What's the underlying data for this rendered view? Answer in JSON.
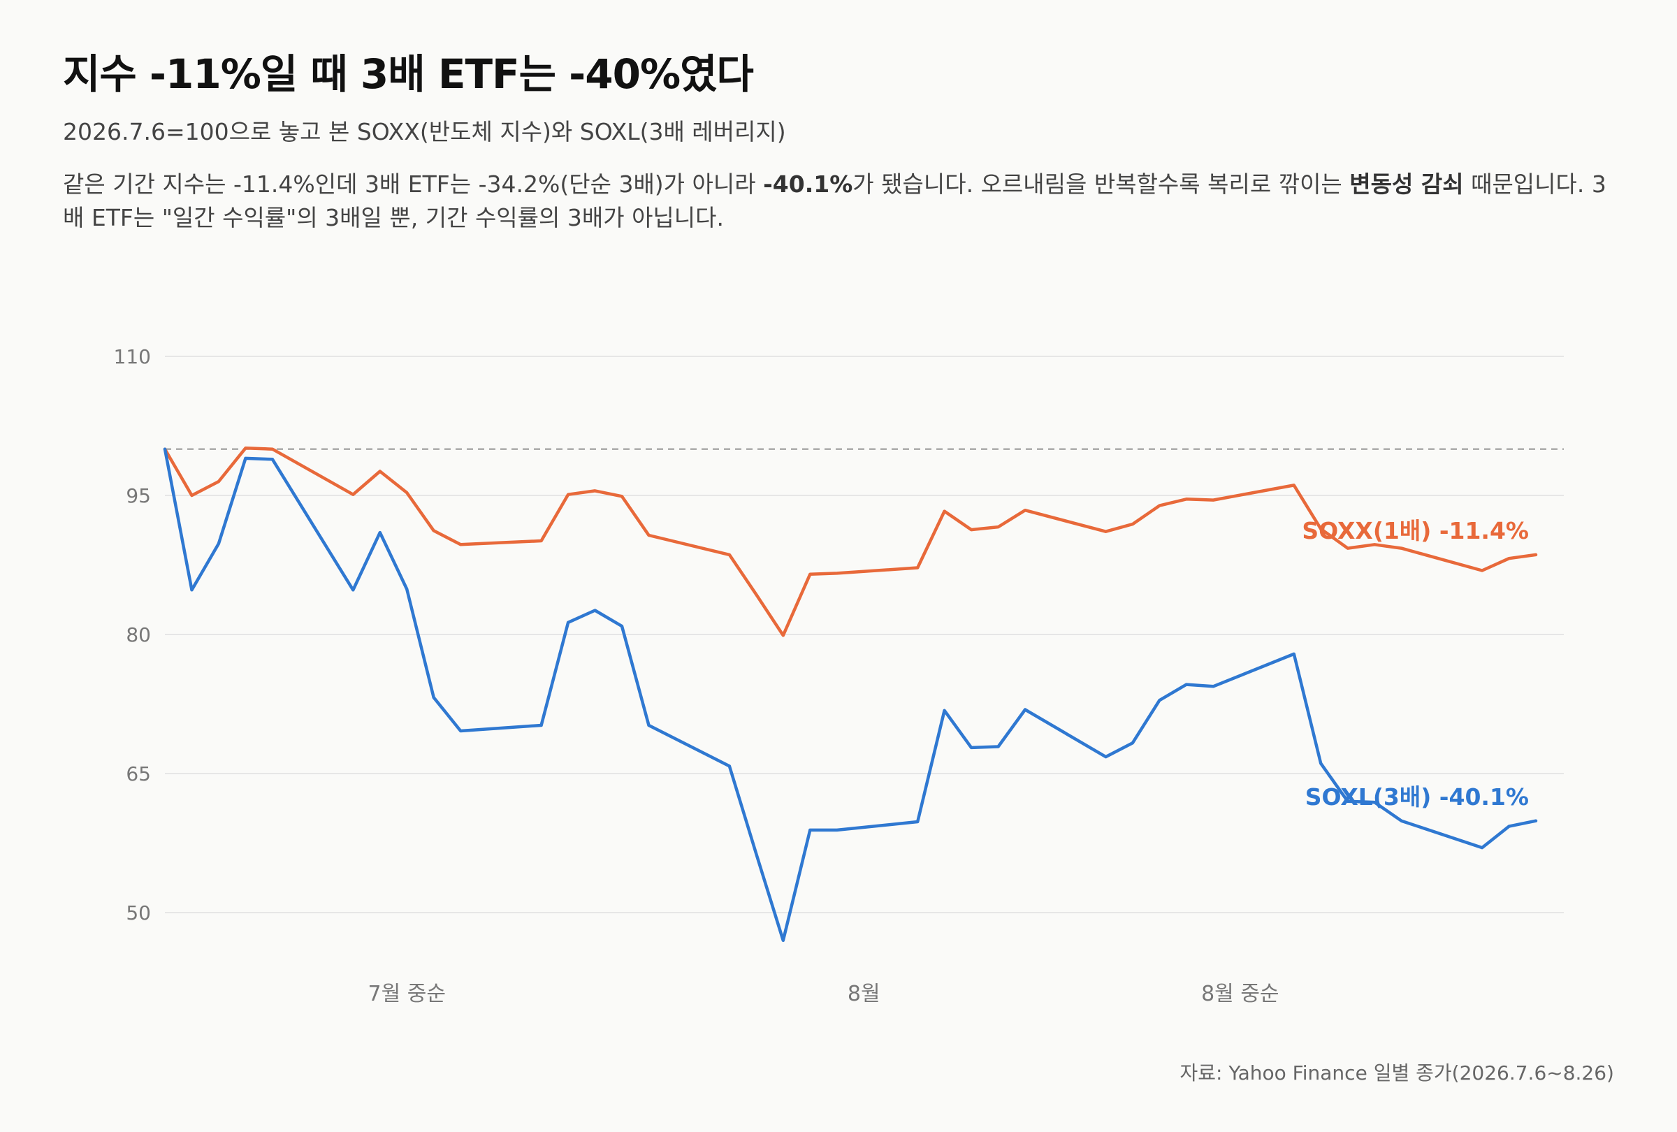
{
  "title": "지수 -11%일 때 3배 ETF는 -40%였다",
  "subtitle": "2026.7.6=100으로 놓고 본 SOXX(반도체 지수)와 SOXL(3배 레버리지)",
  "description": {
    "p1": "같은 기간 지수는 -11.4%인데 3배 ETF는 -34.2%(단순 3배)가 아니라 ",
    "b1": "-40.1%",
    "p2": "가 됐습니다. 오르내림을 반복할수록 복리로 깎이는 ",
    "b2": "변동성 감쇠",
    "p3": " 때문입니다. 3배 ETF는 \"일간 수익률\"의 3배일 뿐, 기간 수익률의 3배가 아닙니다."
  },
  "source": "자료: Yahoo Finance 일별 종가(2026.7.6~8.26)",
  "colors": {
    "soxx": "#e8693a",
    "soxl": "#2f78d1",
    "grid": "#e6e6e6",
    "baseline": "#999999",
    "tick": "#777777"
  },
  "chart_data": {
    "type": "line",
    "ylim": [
      45,
      110
    ],
    "yticks": [
      "110",
      "95",
      "80",
      "65",
      "50"
    ],
    "baseline": 100,
    "x_labels": [
      {
        "day": 9,
        "label": "7월 중순"
      },
      {
        "day": 26,
        "label": "8월"
      },
      {
        "day": 40,
        "label": "8월 중순"
      }
    ],
    "x_days": [
      0,
      1,
      2,
      3,
      4,
      7,
      8,
      9,
      10,
      11,
      14,
      15,
      16,
      17,
      18,
      21,
      22,
      23,
      24,
      25,
      28,
      29,
      30,
      31,
      32,
      35,
      36,
      37,
      38,
      39,
      42,
      43,
      44,
      45,
      46,
      49,
      50,
      51
    ],
    "series": [
      {
        "name": "SOXX(1배) -11.4%",
        "values": [
          100,
          95.0,
          96.5,
          100.1,
          100.0,
          95.1,
          97.6,
          95.3,
          91.2,
          89.7,
          90.1,
          95.1,
          95.5,
          94.9,
          90.7,
          88.6,
          84.3,
          79.9,
          86.5,
          86.6,
          87.2,
          93.3,
          91.3,
          91.6,
          93.4,
          91.1,
          91.9,
          93.9,
          94.6,
          94.5,
          96.1,
          91.4,
          89.3,
          89.7,
          89.3,
          86.9,
          88.2,
          88.6
        ]
      },
      {
        "name": "SOXL(3배) -40.1%",
        "values": [
          100,
          84.8,
          89.8,
          99.0,
          98.9,
          84.8,
          91.0,
          84.9,
          73.2,
          69.6,
          70.2,
          81.3,
          82.6,
          80.9,
          70.2,
          65.8,
          56.3,
          47.0,
          58.9,
          58.9,
          59.8,
          71.8,
          67.8,
          67.9,
          71.9,
          66.8,
          68.3,
          72.9,
          74.6,
          74.4,
          77.9,
          66.1,
          62.0,
          61.9,
          59.9,
          57.0,
          59.3,
          59.9
        ]
      }
    ]
  }
}
